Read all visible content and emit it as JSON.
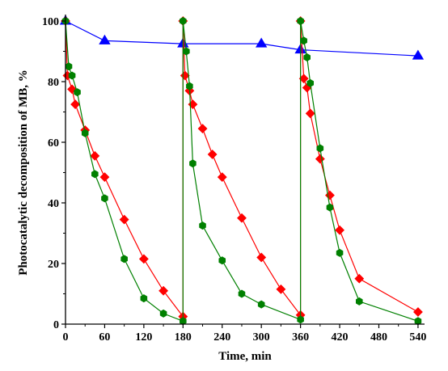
{
  "chart_data": {
    "type": "line",
    "title": "",
    "xlabel": "Time, min",
    "ylabel": "Photocatalytic decomposition of MB, %",
    "xlim": [
      0,
      550
    ],
    "ylim": [
      0,
      100
    ],
    "xticks": [
      0,
      60,
      120,
      180,
      240,
      300,
      360,
      420,
      480,
      540
    ],
    "yticks": [
      0,
      20,
      40,
      60,
      80,
      100
    ],
    "grid": false,
    "legend": "none",
    "series": [
      {
        "color": "#0000ff",
        "marker": "triangle",
        "points": [
          [
            0,
            100
          ],
          [
            60,
            93.5
          ],
          [
            180,
            92.5
          ],
          [
            300,
            92.5
          ],
          [
            360,
            90.5
          ],
          [
            540,
            88.5
          ]
        ]
      },
      {
        "color": "#ff0000",
        "marker": "diamond",
        "points": [
          [
            0,
            100
          ],
          [
            3,
            82
          ],
          [
            10,
            77.5
          ],
          [
            15,
            72.5
          ],
          [
            30,
            64
          ],
          [
            45,
            55.5
          ],
          [
            60,
            48.5
          ],
          [
            90,
            34.5
          ],
          [
            120,
            21.5
          ],
          [
            150,
            11
          ],
          [
            180,
            2.5
          ],
          [
            180,
            100
          ],
          [
            183,
            82
          ],
          [
            190,
            77
          ],
          [
            195,
            72.5
          ],
          [
            210,
            64.5
          ],
          [
            225,
            56
          ],
          [
            240,
            48.5
          ],
          [
            270,
            35
          ],
          [
            300,
            22
          ],
          [
            330,
            11.5
          ],
          [
            360,
            3
          ],
          [
            360,
            100
          ],
          [
            365,
            81
          ],
          [
            370,
            78
          ],
          [
            375,
            69.5
          ],
          [
            390,
            54.5
          ],
          [
            405,
            42.5
          ],
          [
            420,
            31
          ],
          [
            450,
            15
          ],
          [
            540,
            4
          ]
        ]
      },
      {
        "color": "#008000",
        "marker": "hexagon",
        "points": [
          [
            0,
            100
          ],
          [
            5,
            85
          ],
          [
            10,
            82
          ],
          [
            18,
            76.5
          ],
          [
            30,
            63
          ],
          [
            45,
            49.5
          ],
          [
            60,
            41.5
          ],
          [
            90,
            21.5
          ],
          [
            120,
            8.5
          ],
          [
            150,
            3.5
          ],
          [
            180,
            1
          ],
          [
            180,
            100
          ],
          [
            185,
            90
          ],
          [
            190,
            78.5
          ],
          [
            195,
            53
          ],
          [
            210,
            32.5
          ],
          [
            240,
            21
          ],
          [
            270,
            10
          ],
          [
            300,
            6.5
          ],
          [
            360,
            1.5
          ],
          [
            360,
            100
          ],
          [
            365,
            93.5
          ],
          [
            370,
            88
          ],
          [
            375,
            79.5
          ],
          [
            390,
            58
          ],
          [
            405,
            38.5
          ],
          [
            420,
            23.5
          ],
          [
            450,
            7.5
          ],
          [
            540,
            1
          ]
        ]
      }
    ]
  }
}
